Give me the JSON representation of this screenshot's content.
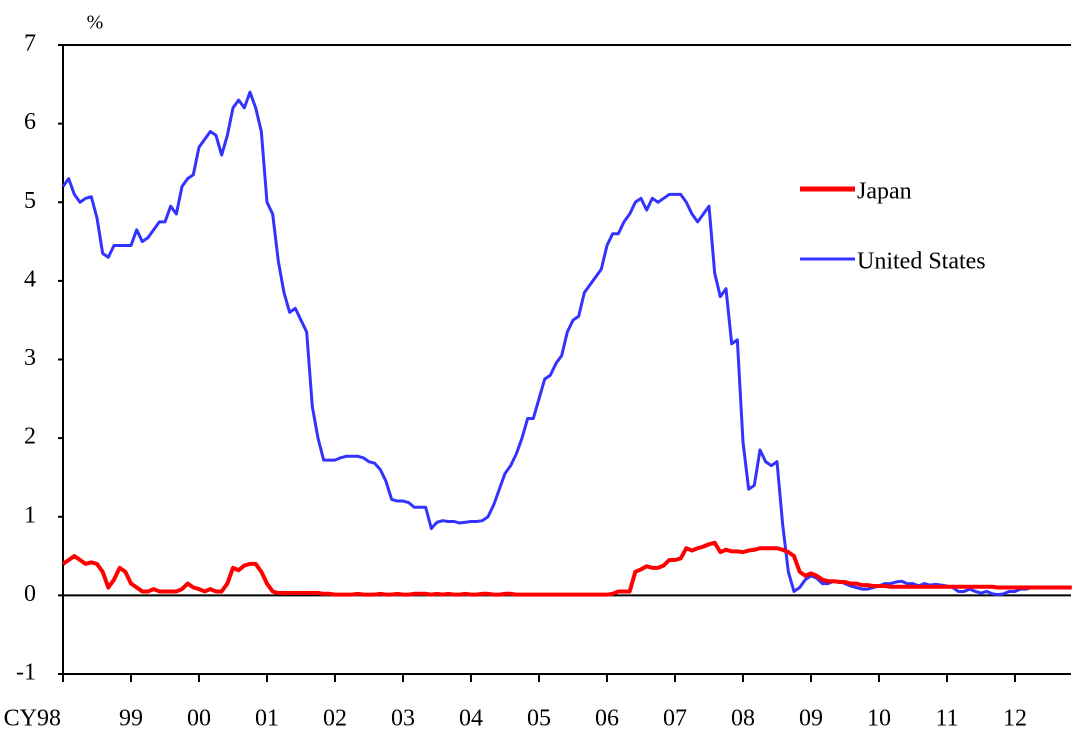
{
  "chart_data": {
    "type": "line",
    "y_label": "%",
    "categories": [
      "CY98",
      null,
      null,
      null,
      null,
      null,
      null,
      null,
      null,
      null,
      null,
      null,
      "99",
      null,
      null,
      null,
      null,
      null,
      null,
      null,
      null,
      null,
      null,
      null,
      "00",
      null,
      null,
      null,
      null,
      null,
      null,
      null,
      null,
      null,
      null,
      null,
      "01",
      null,
      null,
      null,
      null,
      null,
      null,
      null,
      null,
      null,
      null,
      null,
      "02",
      null,
      null,
      null,
      null,
      null,
      null,
      null,
      null,
      null,
      null,
      null,
      "03",
      null,
      null,
      null,
      null,
      null,
      null,
      null,
      null,
      null,
      null,
      null,
      "04",
      null,
      null,
      null,
      null,
      null,
      null,
      null,
      null,
      null,
      null,
      null,
      "05",
      null,
      null,
      null,
      null,
      null,
      null,
      null,
      null,
      null,
      null,
      null,
      "06",
      null,
      null,
      null,
      null,
      null,
      null,
      null,
      null,
      null,
      null,
      null,
      "07",
      null,
      null,
      null,
      null,
      null,
      null,
      null,
      null,
      null,
      null,
      null,
      "08",
      null,
      null,
      null,
      null,
      null,
      null,
      null,
      null,
      null,
      null,
      null,
      "09",
      null,
      null,
      null,
      null,
      null,
      null,
      null,
      null,
      null,
      null,
      null,
      "10",
      null,
      null,
      null,
      null,
      null,
      null,
      null,
      null,
      null,
      null,
      null,
      "11",
      null,
      null,
      null,
      null,
      null,
      null,
      null,
      null,
      null,
      null,
      null,
      "12",
      null,
      null,
      null,
      null,
      null,
      null,
      null,
      null,
      null,
      null
    ],
    "series": [
      {
        "name": "Japan",
        "color": "#ff0000",
        "values": [
          0.4,
          0.45,
          0.5,
          0.45,
          0.4,
          0.42,
          0.4,
          0.3,
          0.1,
          0.2,
          0.35,
          0.3,
          0.15,
          0.1,
          0.05,
          0.05,
          0.08,
          0.05,
          0.05,
          0.05,
          0.05,
          0.08,
          0.15,
          0.1,
          0.08,
          0.05,
          0.08,
          0.05,
          0.05,
          0.15,
          0.35,
          0.32,
          0.38,
          0.4,
          0.4,
          0.3,
          0.15,
          0.05,
          0.03,
          0.03,
          0.03,
          0.03,
          0.03,
          0.03,
          0.03,
          0.03,
          0.02,
          0.02,
          0.01,
          0.01,
          0.01,
          0.01,
          0.02,
          0.01,
          0.01,
          0.01,
          0.02,
          0.01,
          0.01,
          0.02,
          0.01,
          0.01,
          0.02,
          0.02,
          0.02,
          0.01,
          0.02,
          0.01,
          0.02,
          0.01,
          0.01,
          0.02,
          0.01,
          0.01,
          0.02,
          0.02,
          0.01,
          0.01,
          0.02,
          0.02,
          0.01,
          0.01,
          0.01,
          0.01,
          0.01,
          0.01,
          0.01,
          0.01,
          0.01,
          0.01,
          0.01,
          0.01,
          0.01,
          0.01,
          0.01,
          0.01,
          0.01,
          0.02,
          0.05,
          0.05,
          0.05,
          0.3,
          0.33,
          0.37,
          0.35,
          0.35,
          0.38,
          0.45,
          0.45,
          0.47,
          0.6,
          0.57,
          0.6,
          0.62,
          0.65,
          0.67,
          0.55,
          0.58,
          0.56,
          0.56,
          0.55,
          0.57,
          0.58,
          0.6,
          0.6,
          0.6,
          0.6,
          0.58,
          0.55,
          0.5,
          0.3,
          0.25,
          0.28,
          0.25,
          0.2,
          0.18,
          0.18,
          0.17,
          0.17,
          0.15,
          0.15,
          0.13,
          0.13,
          0.12,
          0.12,
          0.12,
          0.11,
          0.11,
          0.11,
          0.11,
          0.11,
          0.11,
          0.11,
          0.11,
          0.11,
          0.11,
          0.11,
          0.11,
          0.11,
          0.11,
          0.11,
          0.11,
          0.11,
          0.11,
          0.11,
          0.1,
          0.1,
          0.1,
          0.1,
          0.1,
          0.1,
          0.1,
          0.1,
          0.1,
          0.1,
          0.1,
          0.1,
          0.1,
          0.1
        ]
      },
      {
        "name": "United States",
        "color": "#3333ff",
        "values": [
          5.2,
          5.3,
          5.1,
          5.0,
          5.05,
          5.07,
          4.8,
          4.35,
          4.3,
          4.45,
          4.45,
          4.45,
          4.45,
          4.65,
          4.5,
          4.55,
          4.65,
          4.75,
          4.75,
          4.95,
          4.85,
          5.2,
          5.3,
          5.35,
          5.7,
          5.8,
          5.9,
          5.85,
          5.6,
          5.85,
          6.2,
          6.3,
          6.2,
          6.4,
          6.2,
          5.9,
          5.0,
          4.85,
          4.25,
          3.85,
          3.6,
          3.65,
          3.5,
          3.35,
          2.4,
          2.0,
          1.72,
          1.72,
          1.72,
          1.75,
          1.77,
          1.77,
          1.77,
          1.75,
          1.7,
          1.68,
          1.6,
          1.45,
          1.22,
          1.2,
          1.2,
          1.18,
          1.12,
          1.12,
          1.12,
          0.85,
          0.93,
          0.95,
          0.94,
          0.94,
          0.92,
          0.93,
          0.94,
          0.94,
          0.95,
          1.0,
          1.15,
          1.35,
          1.55,
          1.65,
          1.8,
          2.0,
          2.25,
          2.25,
          2.5,
          2.75,
          2.8,
          2.95,
          3.05,
          3.35,
          3.5,
          3.55,
          3.85,
          3.95,
          4.05,
          4.15,
          4.45,
          4.6,
          4.6,
          4.75,
          4.85,
          5.0,
          5.05,
          4.9,
          5.05,
          5.0,
          5.05,
          5.1,
          5.1,
          5.1,
          5.0,
          4.85,
          4.75,
          4.85,
          4.95,
          4.1,
          3.8,
          3.9,
          3.2,
          3.25,
          1.95,
          1.35,
          1.4,
          1.85,
          1.7,
          1.65,
          1.7,
          0.9,
          0.3,
          0.05,
          0.1,
          0.2,
          0.25,
          0.22,
          0.15,
          0.15,
          0.18,
          0.18,
          0.15,
          0.12,
          0.1,
          0.08,
          0.08,
          0.1,
          0.12,
          0.15,
          0.15,
          0.17,
          0.18,
          0.15,
          0.15,
          0.12,
          0.15,
          0.13,
          0.14,
          0.13,
          0.12,
          0.1,
          0.05,
          0.05,
          0.08,
          0.05,
          0.03,
          0.05,
          0.02,
          0.01,
          0.02,
          0.05,
          0.05,
          0.08,
          0.08,
          0.1,
          0.1,
          0.1,
          0.1,
          0.1,
          0.1,
          0.1,
          0.1
        ]
      }
    ],
    "ylim": [
      -1,
      7
    ],
    "yticks": [
      -1,
      0,
      1,
      2,
      3,
      4,
      5,
      6,
      7
    ],
    "grid": false
  }
}
